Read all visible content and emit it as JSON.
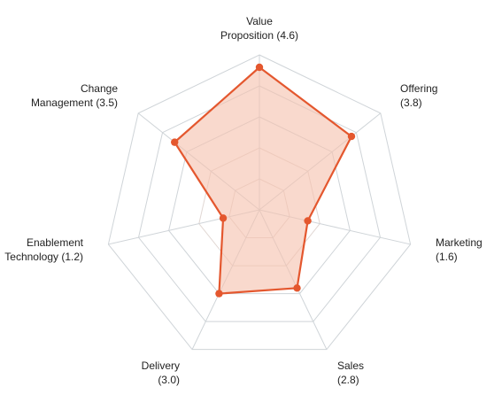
{
  "chart_data": {
    "type": "radar",
    "axes": [
      {
        "line1": "Value",
        "line2": "Proposition (4.6)",
        "value": 4.6
      },
      {
        "line1": "Offering",
        "line2": "(3.8)",
        "value": 3.8
      },
      {
        "line1": "Marketing",
        "line2": "(1.6)",
        "value": 1.6
      },
      {
        "line1": "Sales",
        "line2": "(2.8)",
        "value": 2.8
      },
      {
        "line1": "Delivery",
        "line2": "(3.0)",
        "value": 3.0
      },
      {
        "line1": "Enablement",
        "line2": "Technology (1.2)",
        "value": 1.2
      },
      {
        "line1": "Change",
        "line2": "Management (3.5)",
        "value": 3.5
      }
    ],
    "rmax": 5,
    "rings": 5,
    "grid": true,
    "colors": {
      "stroke": "#e4572e",
      "fill": "#f6c1ae",
      "grid": "#cfd4d8"
    }
  }
}
